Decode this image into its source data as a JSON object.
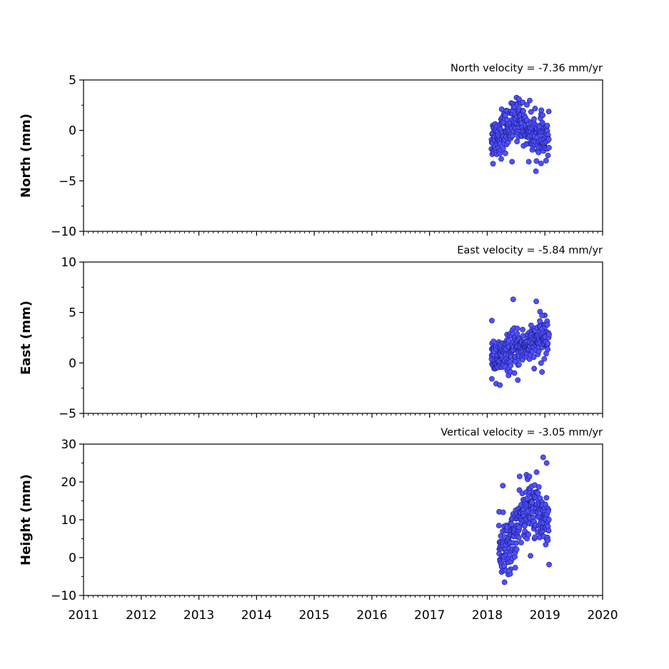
{
  "chart_data": [
    {
      "type": "scatter",
      "annotation": "North velocity = -7.36 mm/yr",
      "ylabel": "North (mm)",
      "xlim": [
        2011,
        2020
      ],
      "ylim": [
        -10,
        5
      ],
      "yticks": [
        "5",
        "0",
        "−5",
        "−10"
      ],
      "ytick_values": [
        5,
        0,
        -5,
        -10
      ],
      "x_start": 2018.07,
      "x_end": 2019.07,
      "baseline": [
        [
          2018.07,
          -0.8
        ],
        [
          2018.25,
          -0.4
        ],
        [
          2018.4,
          0.5
        ],
        [
          2018.55,
          1.3
        ],
        [
          2018.7,
          0.3
        ],
        [
          2018.85,
          -0.6
        ],
        [
          2019.07,
          -0.9
        ]
      ],
      "spread": 1.0,
      "n_points": 300,
      "outliers": [
        [
          2018.55,
          3.1
        ],
        [
          2018.1,
          -3.3
        ],
        [
          2018.72,
          -3.1
        ],
        [
          2019.02,
          -3.0
        ],
        [
          2018.25,
          2.1
        ],
        [
          2018.43,
          -3.1
        ]
      ],
      "marker_color": "#5050ff",
      "edge_color": "#1a1a80"
    },
    {
      "type": "scatter",
      "annotation": "East velocity = -5.84 mm/yr",
      "ylabel": "East (mm)",
      "xlim": [
        2011,
        2020
      ],
      "ylim": [
        -5,
        10
      ],
      "yticks": [
        "10",
        "5",
        "0",
        "−5"
      ],
      "ytick_values": [
        10,
        5,
        0,
        -5
      ],
      "x_start": 2018.07,
      "x_end": 2019.07,
      "baseline": [
        [
          2018.07,
          0.6
        ],
        [
          2018.25,
          0.5
        ],
        [
          2018.5,
          1.4
        ],
        [
          2018.75,
          1.8
        ],
        [
          2019.07,
          2.8
        ]
      ],
      "spread": 0.9,
      "n_points": 300,
      "outliers": [
        [
          2018.45,
          6.3
        ],
        [
          2018.85,
          6.1
        ],
        [
          2018.22,
          -2.2
        ],
        [
          2018.53,
          -1.7
        ],
        [
          2018.08,
          4.2
        ],
        [
          2018.95,
          4.7
        ],
        [
          2018.95,
          -0.9
        ]
      ],
      "marker_color": "#5050ff",
      "edge_color": "#1a1a80"
    },
    {
      "type": "scatter",
      "annotation": "Vertical velocity = -3.05 mm/yr",
      "ylabel": "Height (mm)",
      "xlim": [
        2011,
        2020
      ],
      "ylim": [
        -10,
        30
      ],
      "yticks": [
        "30",
        "20",
        "10",
        "0",
        "−10"
      ],
      "ytick_values": [
        30,
        20,
        10,
        0,
        -10
      ],
      "x_start": 2018.2,
      "x_end": 2019.07,
      "baseline": [
        [
          2018.2,
          3
        ],
        [
          2018.35,
          2
        ],
        [
          2018.5,
          7
        ],
        [
          2018.65,
          13
        ],
        [
          2018.85,
          13
        ],
        [
          2019.07,
          9
        ]
      ],
      "spread": 3.8,
      "n_points": 280,
      "outliers": [
        [
          2018.97,
          26.5
        ],
        [
          2018.27,
          19
        ],
        [
          2018.3,
          -6.5
        ],
        [
          2018.38,
          -3.5
        ],
        [
          2018.75,
          0.5
        ],
        [
          2019.03,
          25
        ]
      ],
      "marker_color": "#5050ff",
      "edge_color": "#1a1a80"
    }
  ],
  "xaxis": {
    "tick_values": [
      2011,
      2012,
      2013,
      2014,
      2015,
      2016,
      2017,
      2018,
      2019,
      2020
    ],
    "tick_labels": [
      "2011",
      "2012",
      "2013",
      "2014",
      "2015",
      "2016",
      "2017",
      "2018",
      "2019",
      "2020"
    ],
    "minor_per_year": 12
  }
}
